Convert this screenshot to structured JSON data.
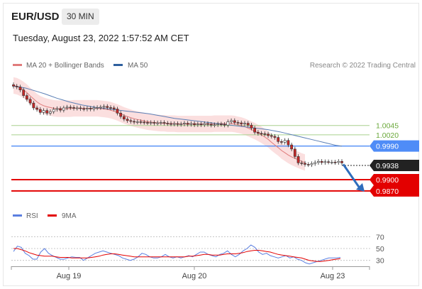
{
  "header": {
    "symbol": "EUR/USD",
    "timeframe": "30 MIN",
    "timestamp": "Tuesday, August 23, 2022 1:57:52 AM CET"
  },
  "colors": {
    "bb_band": "#f6b8b8",
    "ma20": "#e07b7b",
    "ma50": "#5b7fb5",
    "resistance": "#a8d08d",
    "pivot": "#4f8cf7",
    "support": "#e30000",
    "current": "#222222",
    "arrow": "#2e6dbc",
    "bull": "#ffffff",
    "bear": "#c62828",
    "rsi": "#5b7fe0",
    "rsi_ma": "#e30000"
  },
  "chart_data": [
    {
      "type": "line",
      "subtype": "candlestick",
      "ylim": [
        0.9845,
        1.0185
      ],
      "legend": [
        {
          "name": "MA 20 + Bollinger Bands",
          "color": "#e07b7b"
        },
        {
          "name": "MA 50",
          "color": "#2e5f9e"
        }
      ],
      "watermark": "Research © 2022 Trading Central",
      "x_ticks": [
        {
          "label": "Aug 19",
          "index": 16
        },
        {
          "label": "Aug 20",
          "index": 52
        },
        {
          "label": "Aug 23",
          "index": 96
        }
      ],
      "close": [
        1.015,
        1.0148,
        1.014,
        1.0125,
        1.0115,
        1.0105,
        1.0092,
        1.0088,
        1.008,
        1.0085,
        1.0078,
        1.0082,
        1.0088,
        1.009,
        1.0086,
        1.0092,
        1.0094,
        1.0093,
        1.0091,
        1.0092,
        1.009,
        1.0089,
        1.0091,
        1.0089,
        1.0092,
        1.0093,
        1.0094,
        1.0096,
        1.0093,
        1.0092,
        1.0089,
        1.0078,
        1.0069,
        1.0062,
        1.0058,
        1.0056,
        1.0054,
        1.0055,
        1.0054,
        1.0053,
        1.0052,
        1.0053,
        1.0051,
        1.0052,
        1.0053,
        1.0051,
        1.005,
        1.0049,
        1.005,
        1.0048,
        1.0049,
        1.0051,
        1.0048,
        1.005,
        1.0047,
        1.0049,
        1.0047,
        1.005,
        1.0048,
        1.0046,
        1.0047,
        1.0049,
        1.0048,
        1.0046,
        1.0055,
        1.0058,
        1.0053,
        1.0052,
        1.0049,
        1.0051,
        1.0046,
        1.0038,
        1.0027,
        1.0024,
        1.0023,
        1.0022,
        1.0018,
        1.0016,
        1.0013,
        1.0002,
        1.0,
        1.0005,
        0.9993,
        0.9982,
        0.9962,
        0.9945,
        0.9944,
        0.9941,
        0.994,
        0.9943,
        0.9946,
        0.9949,
        0.9946,
        0.9948,
        0.9947,
        0.9947,
        0.9946,
        0.9949,
        0.9945
      ],
      "ma20": [
        1.0152,
        1.015,
        1.0146,
        1.014,
        1.0133,
        1.0124,
        1.0116,
        1.0108,
        1.0102,
        1.0098,
        1.0095,
        1.0093,
        1.0091,
        1.009,
        1.009,
        1.009,
        1.009,
        1.009,
        1.0091,
        1.0091,
        1.0091,
        1.0091,
        1.0091,
        1.0091,
        1.0091,
        1.0091,
        1.009,
        1.0089,
        1.0088,
        1.0086,
        1.0083,
        1.008,
        1.0076,
        1.0072,
        1.0069,
        1.0066,
        1.0063,
        1.0061,
        1.0059,
        1.0057,
        1.0055,
        1.0054,
        1.0053,
        1.0052,
        1.0051,
        1.0051,
        1.005,
        1.005,
        1.005,
        1.0049,
        1.0049,
        1.0049,
        1.0049,
        1.0049,
        1.0049,
        1.0049,
        1.0049,
        1.0049,
        1.0049,
        1.0049,
        1.005,
        1.005,
        1.005,
        1.005,
        1.005,
        1.005,
        1.0049,
        1.0047,
        1.0045,
        1.0042,
        1.0038,
        1.0034,
        1.003,
        1.0025,
        1.002,
        1.0014,
        1.0008,
        1.0,
        0.9993,
        0.9986,
        0.9978,
        0.9972,
        0.9966,
        0.9961,
        0.9957,
        0.9953,
        0.9949,
        0.9946
      ],
      "ma50": [
        1.015,
        1.0148,
        1.0145,
        1.014,
        1.0135,
        1.013,
        1.0124,
        1.0118,
        1.0113,
        1.0108,
        1.0104,
        1.01,
        1.0097,
        1.0094,
        1.0092,
        1.009,
        1.0088,
        1.0086,
        1.0084,
        1.0082,
        1.008,
        1.0078,
        1.0076,
        1.0073,
        1.007,
        1.0067,
        1.0064,
        1.0062,
        1.006,
        1.0058,
        1.0056,
        1.0054,
        1.0052,
        1.005,
        1.0048,
        1.0046,
        1.0044,
        1.0042,
        1.004,
        1.0038,
        1.0036,
        1.0034,
        1.0031,
        1.0028,
        1.0024,
        1.002,
        1.0016,
        1.0012,
        1.0008,
        1.0004,
        1.0,
        0.9996,
        0.9992,
        0.999
      ],
      "bb_width": 0.0022,
      "levels": [
        {
          "value": 1.0045,
          "label": "1.0045",
          "kind": "resistance"
        },
        {
          "value": 1.002,
          "label": "1.0020",
          "kind": "resistance"
        },
        {
          "value": 0.999,
          "label": "0.9990",
          "kind": "pivot"
        },
        {
          "value": 0.9938,
          "label": "0.9938",
          "kind": "current"
        },
        {
          "value": 0.99,
          "label": "0.9900",
          "kind": "support"
        },
        {
          "value": 0.987,
          "label": "0.9870",
          "kind": "support"
        }
      ]
    },
    {
      "type": "line",
      "title": "",
      "ylim": [
        20,
        80
      ],
      "legend": [
        {
          "name": "RSI",
          "color": "#5b7fe0"
        },
        {
          "name": "9MA",
          "color": "#e30000"
        }
      ],
      "levels": [
        {
          "value": 70,
          "label": "70"
        },
        {
          "value": 50,
          "label": "50"
        },
        {
          "value": 30,
          "label": "30"
        }
      ],
      "series": [
        {
          "name": "RSI",
          "values": [
            45,
            54,
            52,
            42,
            38,
            32,
            32,
            44,
            50,
            42,
            38,
            35,
            32,
            32,
            34,
            36,
            35,
            35,
            30,
            34,
            38,
            42,
            44,
            46,
            44,
            42,
            40,
            38,
            34,
            32,
            30,
            32,
            36,
            42,
            40,
            36,
            34,
            34,
            36,
            40,
            36,
            34,
            36,
            34,
            36,
            38,
            36,
            40,
            44,
            44,
            40,
            38,
            36,
            40,
            42,
            46,
            40,
            36,
            40,
            46,
            50,
            56,
            52,
            44,
            40,
            42,
            38,
            36,
            34,
            36,
            38,
            34,
            36,
            32,
            30,
            26,
            24,
            26,
            28,
            30,
            32,
            34,
            34,
            34,
            35
          ]
        },
        {
          "name": "9MA",
          "values": [
            50,
            50,
            48,
            46,
            43,
            41,
            39,
            38,
            37,
            37,
            37,
            36,
            35,
            35,
            35,
            34,
            34,
            34,
            34,
            34,
            35,
            36,
            37,
            39,
            40,
            41,
            41,
            40,
            39,
            38,
            37,
            36,
            36,
            36,
            36,
            36,
            36,
            36,
            36,
            36,
            36,
            36,
            36,
            36,
            36,
            37,
            37,
            38,
            39,
            40,
            40,
            39,
            39,
            39,
            40,
            41,
            41,
            41,
            42,
            43,
            45,
            46,
            47,
            47,
            46,
            45,
            44,
            42,
            40,
            39,
            38,
            37,
            36,
            35,
            34,
            32,
            30,
            29,
            28,
            28,
            29,
            30,
            31,
            32,
            33
          ]
        }
      ]
    }
  ]
}
